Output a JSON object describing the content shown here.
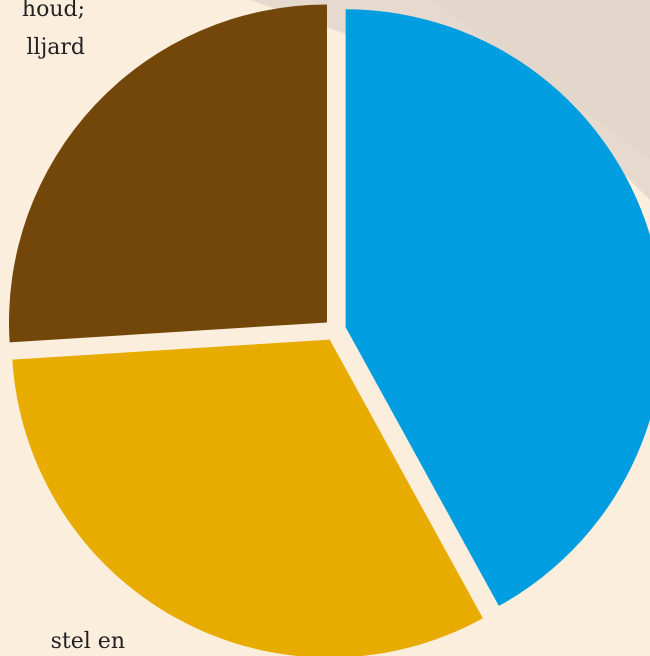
{
  "chart_data": {
    "type": "pie",
    "texts": [
      "houd;",
      "lljard",
      "stel en"
    ],
    "values": [
      42,
      32,
      26
    ],
    "colors": [
      "#009ee0",
      "#e8ac00",
      "#734709"
    ]
  }
}
